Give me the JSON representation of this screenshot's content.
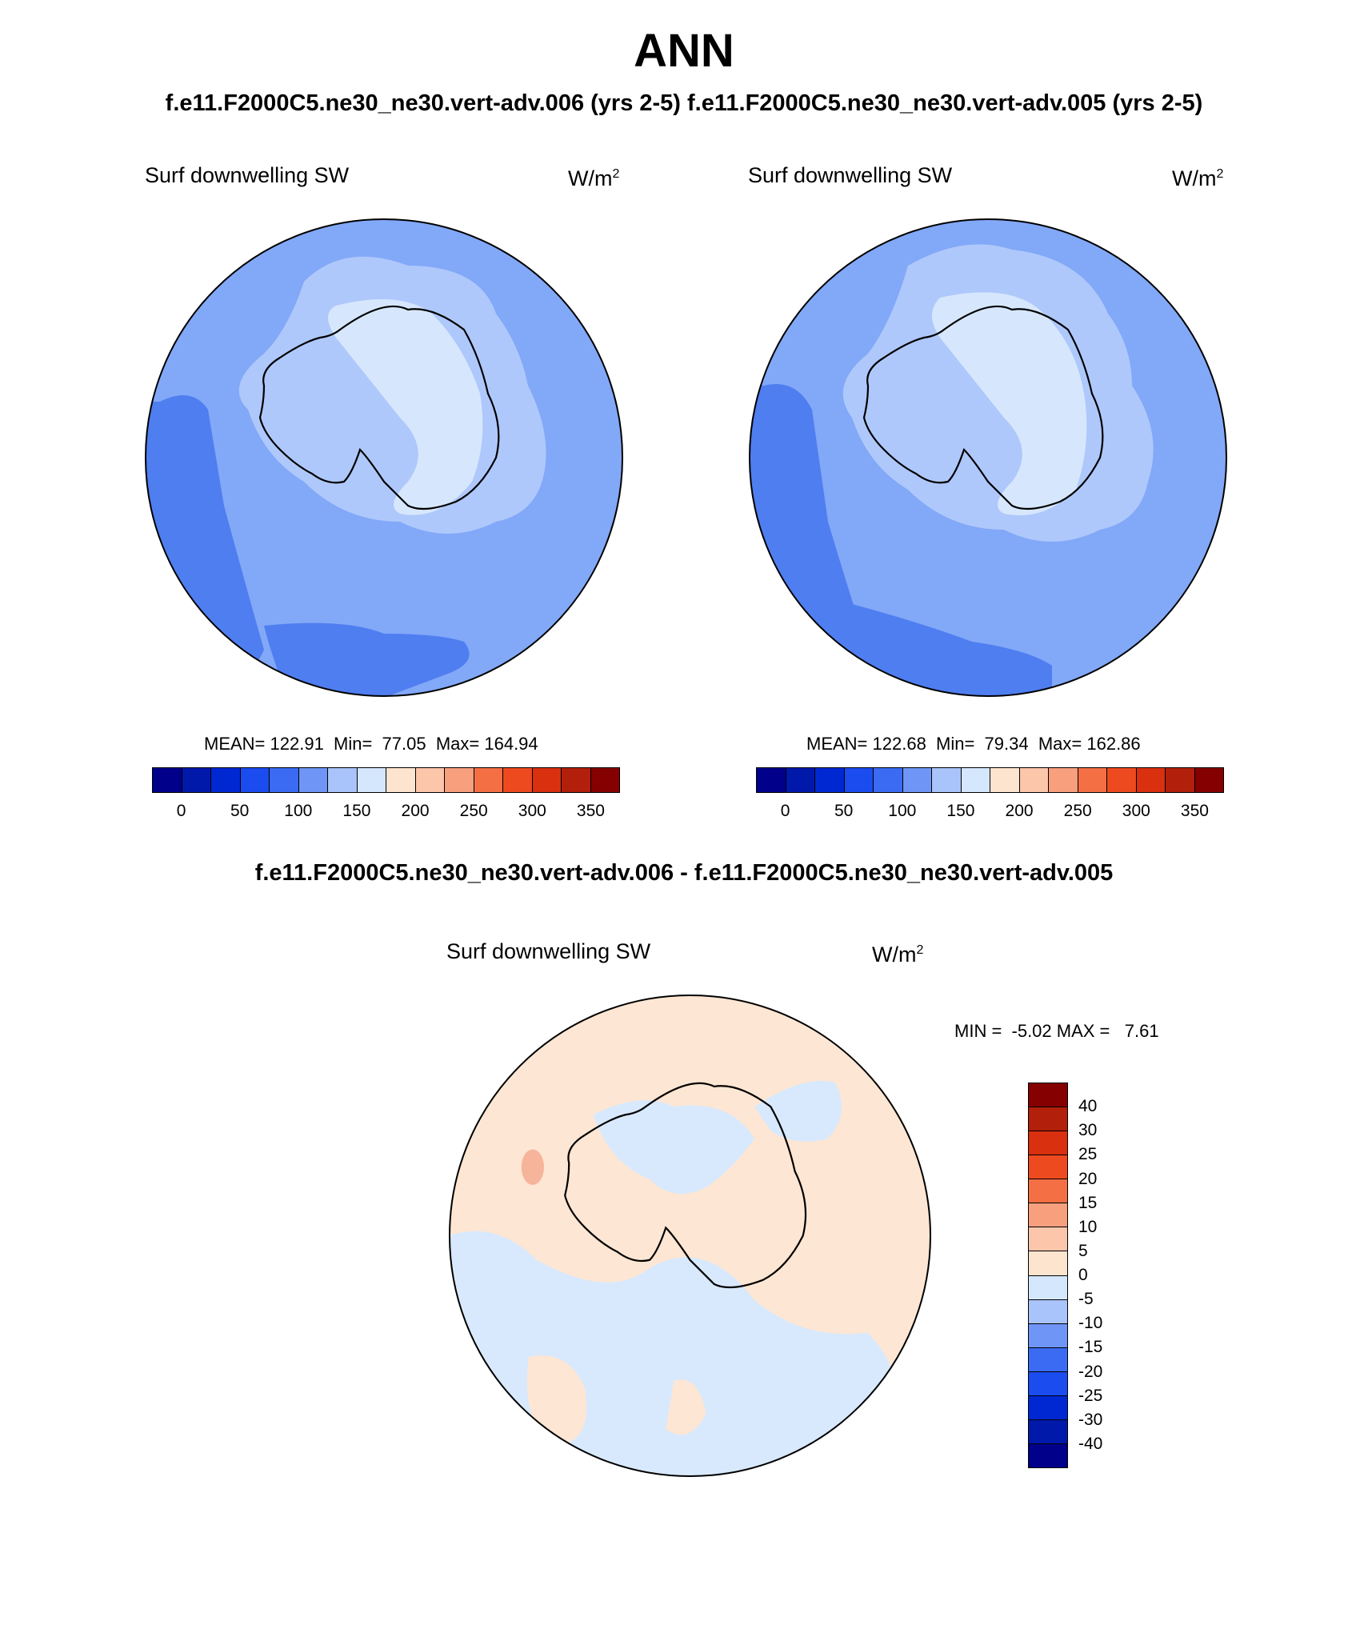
{
  "title": "ANN",
  "subtitle": "f.e11.F2000C5.ne30_ne30.vert-adv.006 (yrs 2-5)  f.e11.F2000C5.ne30_ne30.vert-adv.005 (yrs 2-5)",
  "diff_title": "f.e11.F2000C5.ne30_ne30.vert-adv.006 - f.e11.F2000C5.ne30_ne30.vert-adv.005",
  "panels": [
    {
      "label": "Surf downwelling SW",
      "units": "W/m",
      "units_sup": "2",
      "stats": "MEAN= 122.91  Min=  77.05  Max= 164.94"
    },
    {
      "label": "Surf downwelling SW",
      "units": "W/m",
      "units_sup": "2",
      "stats": "MEAN= 122.68  Min=  79.34  Max= 162.86"
    },
    {
      "label": "Surf downwelling SW",
      "units": "W/m",
      "units_sup": "2",
      "stats": "MIN =  -5.02 MAX =   7.61"
    }
  ],
  "colorbar_abs": {
    "colors": [
      "#00008a",
      "#0019aa",
      "#0028d2",
      "#1b4cf0",
      "#3a6bf2",
      "#6f96f6",
      "#a9c4fa",
      "#d5e7fc",
      "#fde4cf",
      "#fcc6ab",
      "#f89f7e",
      "#f56f45",
      "#ee4a1f",
      "#d9300f",
      "#b21f0a",
      "#850000"
    ],
    "labels": [
      "0",
      "50",
      "100",
      "150",
      "200",
      "250",
      "300",
      "350"
    ]
  },
  "colorbar_diff": {
    "colors": [
      "#850000",
      "#b21f0a",
      "#d9300f",
      "#ee4a1f",
      "#f56f45",
      "#f89f7e",
      "#fcc6ab",
      "#fde4cf",
      "#d5e7fc",
      "#a9c4fa",
      "#6f96f6",
      "#3a6bf2",
      "#1b4cf0",
      "#0028d2",
      "#0019aa",
      "#00008a"
    ],
    "labels": [
      "40",
      "30",
      "25",
      "20",
      "15",
      "10",
      "5",
      "0",
      "-5",
      "-10",
      "-15",
      "-20",
      "-25",
      "-30",
      "-40"
    ]
  },
  "map_colors": {
    "ocean_mid": "#82a8f8",
    "ocean_dark": "#4f7ef0",
    "light": "#afc8fb",
    "lighter": "#d6e7fd",
    "diff_pos": "#fde6d3",
    "diff_neg": "#d8e9fd",
    "diff_pos2": "#f6b49a"
  }
}
